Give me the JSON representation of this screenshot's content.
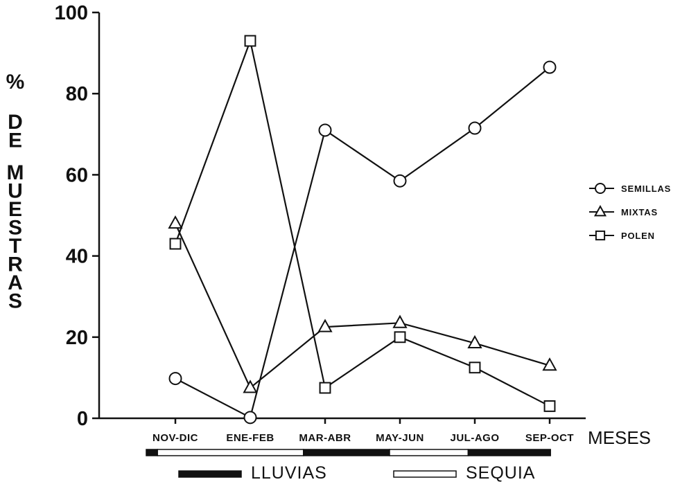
{
  "chart_data": {
    "type": "line",
    "categories": [
      "NOV-DIC",
      "ENE-FEB",
      "MAR-ABR",
      "MAY-JUN",
      "JUL-AGO",
      "SEP-OCT"
    ],
    "series": [
      {
        "name": "SEMILLAS",
        "marker": "circle",
        "values": [
          9.8,
          0.2,
          71,
          58.5,
          71.5,
          86.5
        ]
      },
      {
        "name": "MIXTAS",
        "marker": "triangle",
        "values": [
          48,
          7.5,
          22.5,
          23.5,
          18.5,
          13
        ]
      },
      {
        "name": "POLEN",
        "marker": "square",
        "values": [
          43,
          93,
          7.5,
          20,
          12.5,
          3
        ]
      }
    ],
    "ylim": [
      0,
      100
    ],
    "yticks": [
      "0",
      "20",
      "40",
      "60",
      "80",
      "100"
    ],
    "ylabel_lines": [
      "%",
      "DE",
      "MUESTRAS"
    ],
    "xlabel": "MESES",
    "grid": false,
    "legend_position": "right",
    "legend_labels": [
      "SEMILLAS",
      "MIXTAS",
      "POLEN"
    ],
    "season_bar": {
      "segments": [
        {
          "season": "LLUVIAS",
          "from_category": 0,
          "to_category": 0.15
        },
        {
          "season": "SEQUIA",
          "from_category": 0.15,
          "to_category": 2.1
        },
        {
          "season": "LLUVIAS",
          "from_category": 2.1,
          "to_category": 3.25
        },
        {
          "season": "SEQUIA",
          "from_category": 3.25,
          "to_category": 4.3
        },
        {
          "season": "LLUVIAS",
          "from_category": 4.3,
          "to_category": 5.4
        }
      ],
      "legend": [
        {
          "label": "LLUVIAS",
          "fill": "#111111"
        },
        {
          "label": "SEQUIA",
          "fill": "#ffffff"
        }
      ]
    },
    "colors": {
      "ink": "#111111",
      "background": "#ffffff"
    }
  }
}
